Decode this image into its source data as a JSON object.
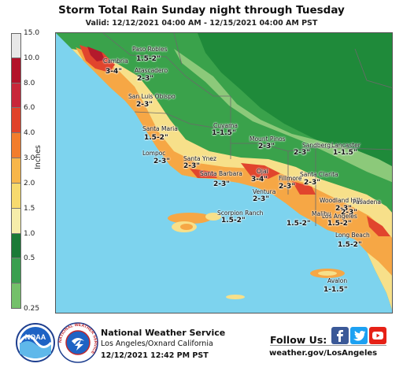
{
  "header": {
    "title": "Storm Total Rain Sunday night through Tuesday",
    "valid": "Valid: 12/12/2021 04:00 AM - 12/15/2021 04:00 AM PST"
  },
  "legend": {
    "units": "Inches",
    "ticks": [
      "15.0",
      "10.0",
      "8.0",
      "6.0",
      "4.0",
      "3.0",
      "2.0",
      "1.5",
      "1.0",
      "0.5",
      "0.25"
    ],
    "colors": [
      "#e8e8e8",
      "#b3122a",
      "#c8273a",
      "#e0432a",
      "#f27d2c",
      "#f8b64a",
      "#f7da6e",
      "#f6edaa",
      "#1b7a37",
      "#3a9f4f",
      "#74c06a"
    ]
  },
  "map": {
    "colors": {
      "ocean": "#7dd3ee",
      "green_dark": "#1f8a3a",
      "green_mid": "#3aa24b",
      "green_light": "#8cc97a",
      "yellow": "#f7e08a",
      "orange": "#f6a745",
      "red": "#e1452d",
      "darkred": "#b41a2c",
      "county": "#6a6a6a"
    },
    "places": [
      "Paso Robles",
      "Cambria",
      "Atascadero",
      "San Luis Obispo",
      "Santa Maria",
      "Cuyama",
      "Mount Pinos",
      "Sandberg",
      "Lancaster",
      "Lompoc",
      "Santa Ynez",
      "Santa Barbara",
      "Ojai",
      "Fillmore",
      "Santa Clarita",
      "Ventura",
      "Woodland Hills",
      "Pasadena",
      "Malibu",
      "Los Angeles",
      "Scorpion Ranch",
      "Long Beach",
      "Avalon"
    ],
    "amounts": [
      "1.5-2\"",
      "3-4\"",
      "2-3\"",
      "2-3\"",
      "1.5-2\"",
      "1-1.5\"",
      "2-3\"",
      "2-3\"",
      "1-1.5\"",
      "2-3\"",
      "2-3\"",
      "2-3\"",
      "3-4\"",
      "2-3\"",
      "2-3\"",
      "2-3\"",
      "2-3\"",
      "2-3\"",
      "1.5-2\"",
      "1.5-2\"",
      "1.5-2\"",
      "1.5-2\"",
      "1-1.5\""
    ]
  },
  "footer": {
    "agency": "National Weather Service",
    "office": "Los Angeles/Oxnard California",
    "issued": "12/12/2021 12:42 PM PST",
    "follow": "Follow Us:",
    "website": "weather.gov/LosAngeles",
    "noaa_text": "NOAA",
    "nws_ring_text": "NATIONAL WEATHER SERVICE",
    "social": [
      "facebook-icon",
      "twitter-icon",
      "youtube-icon"
    ]
  }
}
